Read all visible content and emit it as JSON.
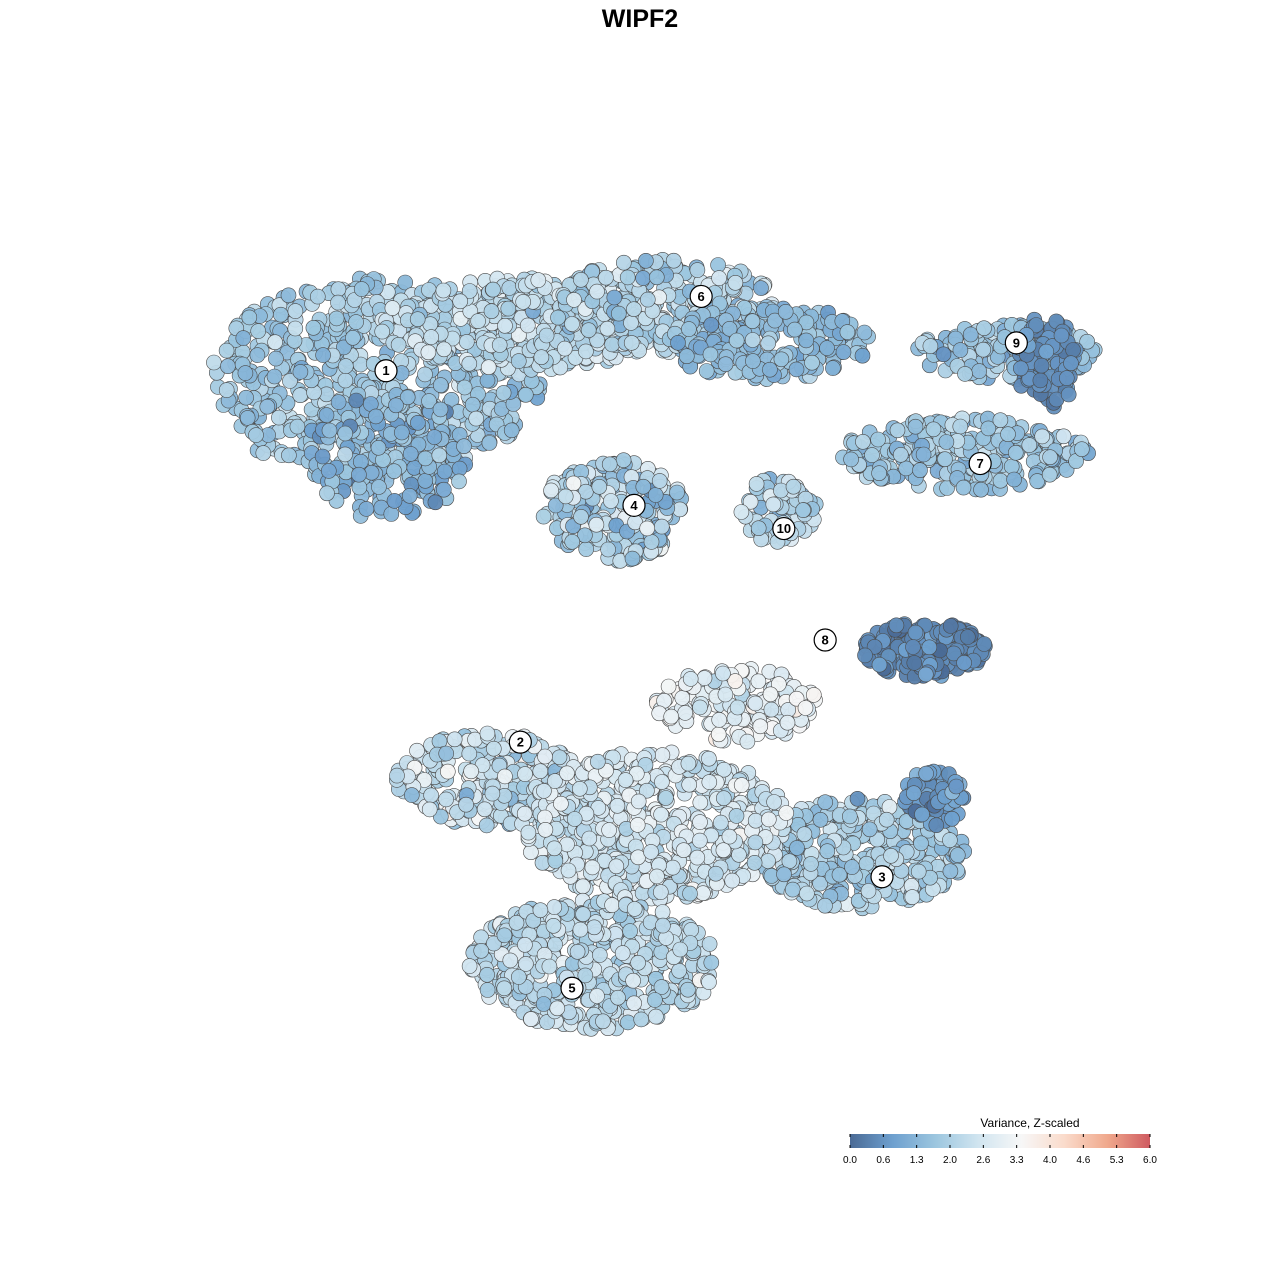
{
  "chart_data": {
    "type": "scatter",
    "title": "WIPF2",
    "colorbar": {
      "title": "Variance, Z-scaled",
      "min": 0.0,
      "max": 6.0,
      "ticks": [
        "0.0",
        "0.6",
        "1.3",
        "2.0",
        "2.6",
        "3.3",
        "4.0",
        "4.6",
        "5.3",
        "6.0"
      ],
      "colors": [
        "#4a6a95",
        "#6ea0cf",
        "#9cc6df",
        "#d1e5f0",
        "#f7f7f7",
        "#fadbcb",
        "#f0a98d",
        "#cf5a60"
      ]
    },
    "clusters": [
      {
        "label": "1",
        "x": -22.0,
        "y": 26.0
      },
      {
        "label": "2",
        "x": -9.0,
        "y": -14.0
      },
      {
        "label": "3",
        "x": 26.0,
        "y": -28.5
      },
      {
        "label": "4",
        "x": 2.0,
        "y": 11.5
      },
      {
        "label": "5",
        "x": -4.0,
        "y": -40.5
      },
      {
        "label": "6",
        "x": 8.5,
        "y": 34.0
      },
      {
        "label": "7",
        "x": 35.5,
        "y": 16.0
      },
      {
        "label": "8",
        "x": 20.5,
        "y": -3.0
      },
      {
        "label": "9",
        "x": 39.0,
        "y": 29.0
      },
      {
        "label": "10",
        "x": 16.5,
        "y": 9.0
      }
    ],
    "regions": [
      {
        "cluster": "1",
        "cx": -23,
        "cy": 25,
        "rx": 16,
        "ry": 11,
        "n": 620,
        "mean": 1.8,
        "sd": 0.6
      },
      {
        "cluster": "1",
        "cx": -22,
        "cy": 17,
        "rx": 8,
        "ry": 7,
        "n": 160,
        "mean": 1.3,
        "sd": 0.6
      },
      {
        "cluster": "1",
        "cx": -9,
        "cy": 31,
        "rx": 14,
        "ry": 5,
        "n": 360,
        "mean": 2.3,
        "sd": 0.6
      },
      {
        "cluster": "6",
        "cx": 5,
        "cy": 33,
        "rx": 11,
        "ry": 5,
        "n": 320,
        "mean": 2.1,
        "sd": 0.7
      },
      {
        "cluster": "6",
        "cx": 15,
        "cy": 29,
        "rx": 10,
        "ry": 4,
        "n": 220,
        "mean": 1.5,
        "sd": 0.5
      },
      {
        "cluster": "9",
        "cx": 38,
        "cy": 28,
        "rx": 9,
        "ry": 3,
        "n": 150,
        "mean": 1.6,
        "sd": 0.6
      },
      {
        "cluster": "9",
        "cx": 42,
        "cy": 27,
        "rx": 3,
        "ry": 5,
        "n": 80,
        "mean": 0.6,
        "sd": 0.4
      },
      {
        "cluster": "7",
        "cx": 34,
        "cy": 17,
        "rx": 12,
        "ry": 4,
        "n": 260,
        "mean": 1.7,
        "sd": 0.6
      },
      {
        "cluster": "4",
        "cx": 0,
        "cy": 11,
        "rx": 7,
        "ry": 5.5,
        "n": 260,
        "mean": 2.0,
        "sd": 1.0
      },
      {
        "cluster": "10",
        "cx": 16,
        "cy": 11,
        "rx": 4,
        "ry": 3.5,
        "n": 80,
        "mean": 2.0,
        "sd": 0.8
      },
      {
        "cluster": "8",
        "cx": 30,
        "cy": -4,
        "rx": 6,
        "ry": 3,
        "n": 190,
        "mean": 0.5,
        "sd": 0.4
      },
      {
        "cluster": "2",
        "cx": -12,
        "cy": -18,
        "rx": 9,
        "ry": 5,
        "n": 260,
        "mean": 2.4,
        "sd": 0.8
      },
      {
        "cluster": "3",
        "cx": 24,
        "cy": -26,
        "rx": 10,
        "ry": 6,
        "n": 360,
        "mean": 2.0,
        "sd": 0.7
      },
      {
        "cluster": "3",
        "cx": 31,
        "cy": -20,
        "rx": 3,
        "ry": 3,
        "n": 70,
        "mean": 0.8,
        "sd": 0.5
      },
      {
        "cluster": "5",
        "cx": 4,
        "cy": -23,
        "rx": 13,
        "ry": 8,
        "n": 560,
        "mean": 2.6,
        "sd": 0.6
      },
      {
        "cluster": "5",
        "cx": -2,
        "cy": -38,
        "rx": 12,
        "ry": 7,
        "n": 480,
        "mean": 2.3,
        "sd": 0.6
      },
      {
        "cluster": "5",
        "cx": 12,
        "cy": -10,
        "rx": 8,
        "ry": 4,
        "n": 150,
        "mean": 3.0,
        "sd": 0.6
      }
    ],
    "x_range": [
      -40,
      50
    ],
    "y_range": [
      -52,
      46
    ],
    "axes_visible": false
  }
}
